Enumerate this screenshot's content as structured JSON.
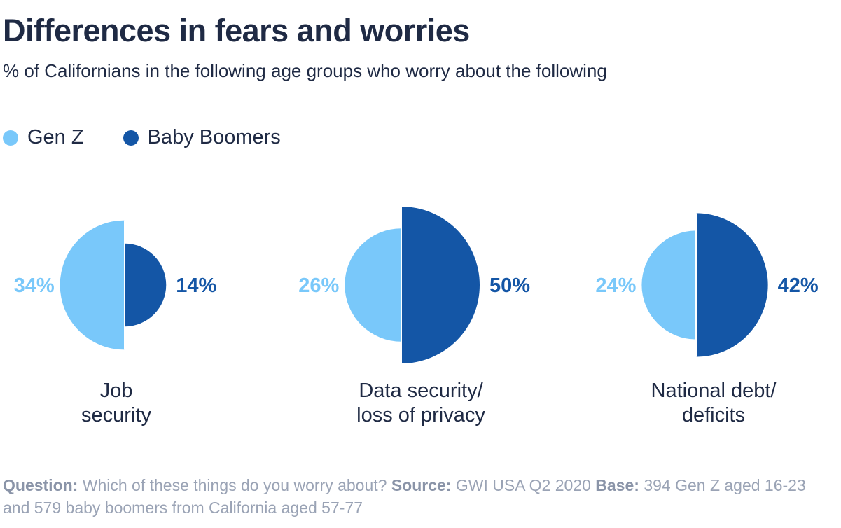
{
  "chart_data": {
    "type": "semicircle-comparison",
    "title": "Differences in fears and worries",
    "subtitle": "% of Californians in the following age groups who worry about the following",
    "series": [
      {
        "name": "Gen Z",
        "values": [
          34,
          26,
          24
        ],
        "color": "#79c8fa"
      },
      {
        "name": "Baby Boomers",
        "values": [
          14,
          50,
          42
        ],
        "color": "#1456a6"
      }
    ],
    "categories": [
      [
        "Job",
        "security"
      ],
      [
        "Data security/",
        "loss of privacy"
      ],
      [
        "National debt/",
        "deficits"
      ]
    ],
    "value_labels": {
      "gen_z": [
        "34%",
        "26%",
        "24%"
      ],
      "boomers": [
        "14%",
        "50%",
        "42%"
      ]
    }
  },
  "footer": {
    "question_label": "Question:",
    "question_text": "Which of these things do you worry about?",
    "source_label": "Source:",
    "source_text": "GWI USA Q2 2020",
    "base_label": "Base:",
    "base_text": "394 Gen Z aged 16-23 and 579 baby boomers from California aged 57-77"
  }
}
